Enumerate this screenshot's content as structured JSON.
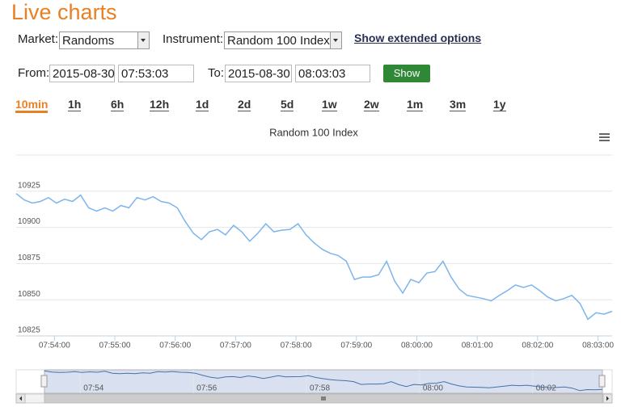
{
  "header": {
    "title": "Live charts"
  },
  "form": {
    "market_label": "Market:",
    "market": "Randoms",
    "instrument_label": "Instrument:",
    "instrument": "Random 100 Index",
    "extended_link": "Show extended options",
    "from_label": "From:",
    "from_date": "2015-08-30",
    "from_time": "07:53:03",
    "to_label": "To:",
    "to_date": "2015-08-30",
    "to_time": "08:03:03",
    "show_button": "Show"
  },
  "periods": [
    "10min",
    "1h",
    "6h",
    "12h",
    "1d",
    "2d",
    "5d",
    "1w",
    "2w",
    "1m",
    "3m",
    "1y"
  ],
  "active_period": "10min",
  "chart_data": {
    "type": "line",
    "title": "Random 100 Index",
    "color": "#7cb5ec",
    "x": [
      "07:53:22",
      "07:53:30",
      "07:53:38",
      "07:53:46",
      "07:53:54",
      "07:54:02",
      "07:54:10",
      "07:54:18",
      "07:54:26",
      "07:54:34",
      "07:54:42",
      "07:54:50",
      "07:54:58",
      "07:55:06",
      "07:55:14",
      "07:55:22",
      "07:55:30",
      "07:55:38",
      "07:55:46",
      "07:55:54",
      "07:56:02",
      "07:56:10",
      "07:56:18",
      "07:56:26",
      "07:56:34",
      "07:56:42",
      "07:56:50",
      "07:56:58",
      "07:57:06",
      "07:57:14",
      "07:57:22",
      "07:57:30",
      "07:57:38",
      "07:57:46",
      "07:57:54",
      "07:58:02",
      "07:58:10",
      "07:58:18",
      "07:58:26",
      "07:58:34",
      "07:58:42",
      "07:58:50",
      "07:58:58",
      "07:59:06",
      "07:59:14",
      "07:59:22",
      "07:59:30",
      "07:59:38",
      "07:59:46",
      "07:59:54",
      "08:00:02",
      "08:00:10",
      "08:00:18",
      "08:00:26",
      "08:00:34",
      "08:00:42",
      "08:00:50",
      "08:00:58",
      "08:01:06",
      "08:01:14",
      "08:01:22",
      "08:01:30",
      "08:01:38",
      "08:01:46",
      "08:01:54",
      "08:02:02",
      "08:02:10",
      "08:02:18",
      "08:02:26",
      "08:02:34",
      "08:02:42",
      "08:02:50",
      "08:02:58",
      "08:03:06",
      "08:03:14"
    ],
    "values": [
      10923.4,
      10919,
      10916.8,
      10917.9,
      10920.6,
      10916.8,
      10919.5,
      10917.9,
      10922.3,
      10913.5,
      10911.3,
      10913.5,
      10911.3,
      10915.1,
      10913.5,
      10920.6,
      10919,
      10921.2,
      10917.9,
      10916.8,
      10913.5,
      10904.1,
      10895.9,
      10891.5,
      10897,
      10898.6,
      10894.8,
      10901.4,
      10897,
      10890.4,
      10895.9,
      10902.5,
      10897,
      10898.1,
      10898.6,
      10902.5,
      10894.8,
      10889.3,
      10884.9,
      10882.1,
      10880.5,
      10876.6,
      10864,
      10865.7,
      10865.7,
      10867.3,
      10876.6,
      10862.9,
      10854.6,
      10864,
      10861.8,
      10868.4,
      10869.5,
      10876.6,
      10865.7,
      10857.4,
      10853,
      10851.9,
      10850.8,
      10849.2,
      10853,
      10856.3,
      10860.2,
      10858.5,
      10860.2,
      10856.3,
      10851.9,
      10849.2,
      10850.8,
      10853,
      10847.5,
      10836.5,
      10841,
      10840,
      10842
    ],
    "xlim": [
      "07:53:22",
      "08:03:14"
    ],
    "xticks": [
      "07:54:00",
      "07:55:00",
      "07:56:00",
      "07:57:00",
      "07:58:00",
      "07:59:00",
      "08:00:00",
      "08:01:00",
      "08:02:00",
      "08:03:00"
    ],
    "ylim": [
      10825,
      10950
    ],
    "yticks": [
      10825,
      10850,
      10875,
      10900,
      10925
    ],
    "grid": true
  },
  "navigator": {
    "xticks": [
      "07:54",
      "07:56",
      "07:58",
      "08:00",
      "08:02"
    ]
  }
}
